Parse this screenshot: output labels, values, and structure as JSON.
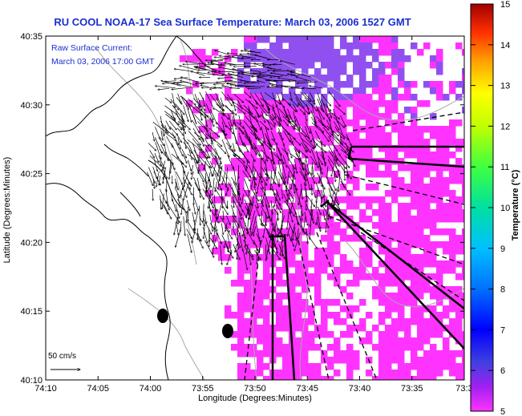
{
  "title": "RU COOL  NOAA-17  Sea Surface Temperature:  March 03, 2006 1527 GMT",
  "inset": {
    "line1": "Raw Surface Current:",
    "line2": "March 03, 2006 17:00 GMT"
  },
  "scale": {
    "label": "50 cm/s"
  },
  "axes": {
    "xlabel": "Longitude (Degrees:Minutes)",
    "ylabel": "Latitude (Degrees:Minutes)",
    "xticks": [
      "74:10",
      "74:05",
      "74:00",
      "73:55",
      "73:50",
      "73:45",
      "73:40",
      "73:35",
      "73:3"
    ],
    "yticks": [
      "40:35",
      "40:30",
      "40:25",
      "40:20",
      "40:15",
      "40:10"
    ]
  },
  "colorbar": {
    "label": "Temperature (°C)",
    "ticks": [
      "15",
      "14",
      "13",
      "12",
      "11",
      "10",
      "9",
      "8",
      "7",
      "6",
      "5"
    ],
    "min": 5,
    "max": 15
  },
  "colors": {
    "title": "#1a2fd0",
    "sst_warm": "#ff33ff",
    "sst_cool": "#9050f0",
    "coast": "#000000",
    "bathymetry": "#a8a8a8"
  }
}
